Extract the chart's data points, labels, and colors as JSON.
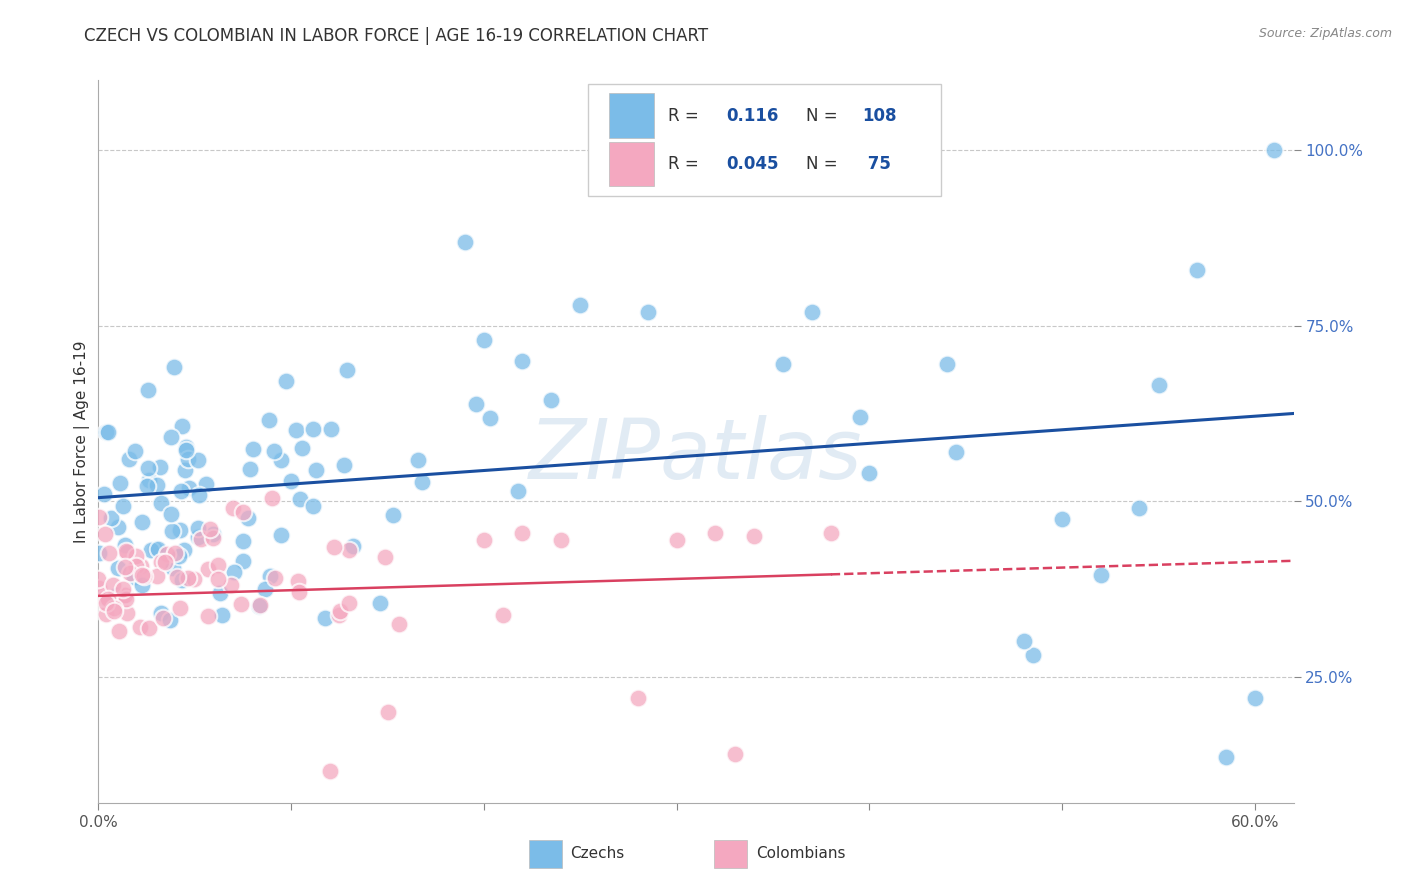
{
  "title": "CZECH VS COLOMBIAN IN LABOR FORCE | AGE 16-19 CORRELATION CHART",
  "source": "Source: ZipAtlas.com",
  "ylabel": "In Labor Force | Age 16-19",
  "xlim": [
    0.0,
    0.62
  ],
  "ylim": [
    0.07,
    1.1
  ],
  "czech_color": "#7bbce8",
  "colombian_color": "#f4a8c0",
  "czech_R": 0.116,
  "czech_N": 108,
  "colombian_R": 0.045,
  "colombian_N": 75,
  "trend_czech_color": "#1a4fa0",
  "trend_colombian_color": "#d94060",
  "watermark": "ZIPatlas",
  "x_ticks": [
    0.0,
    0.1,
    0.2,
    0.3,
    0.4,
    0.5,
    0.6
  ],
  "x_labels": [
    "0.0%",
    "",
    "",
    "",
    "",
    "",
    "60.0%"
  ],
  "y_ticks": [
    0.25,
    0.5,
    0.75,
    1.0
  ],
  "y_labels": [
    "25.0%",
    "50.0%",
    "75.0%",
    "100.0%"
  ],
  "legend_R_N_color": "#1a4fa0",
  "legend_text_color": "#333333"
}
